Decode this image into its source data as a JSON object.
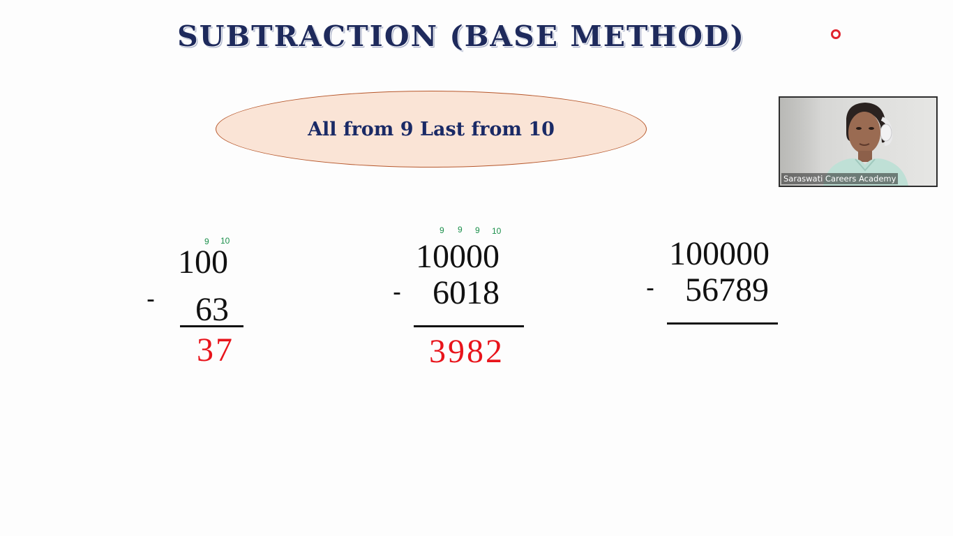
{
  "slide": {
    "title": "SUBTRACTION (BASE METHOD)",
    "rule_text": "All from 9 Last from 10"
  },
  "video": {
    "participant_name": "Saraswati Careers Academy"
  },
  "recording_indicator": {
    "color": "#e0242e"
  },
  "problems": [
    {
      "carry_marks": [
        "9",
        "10"
      ],
      "minuend": "100",
      "operator": "-",
      "subtrahend": "63",
      "answer": "37"
    },
    {
      "carry_marks": [
        "9",
        "9",
        "9",
        "10"
      ],
      "minuend": "10000",
      "operator": "-",
      "subtrahend": "6018",
      "answer": "3982"
    },
    {
      "minuend": "100000",
      "operator": "-",
      "subtrahend": "56789"
    }
  ],
  "colors": {
    "title": "#1e2a5c",
    "oval_fill": "#fae4d6",
    "oval_border": "#b6562a",
    "carry": "#1a8f4a",
    "answer": "#e8141b"
  }
}
